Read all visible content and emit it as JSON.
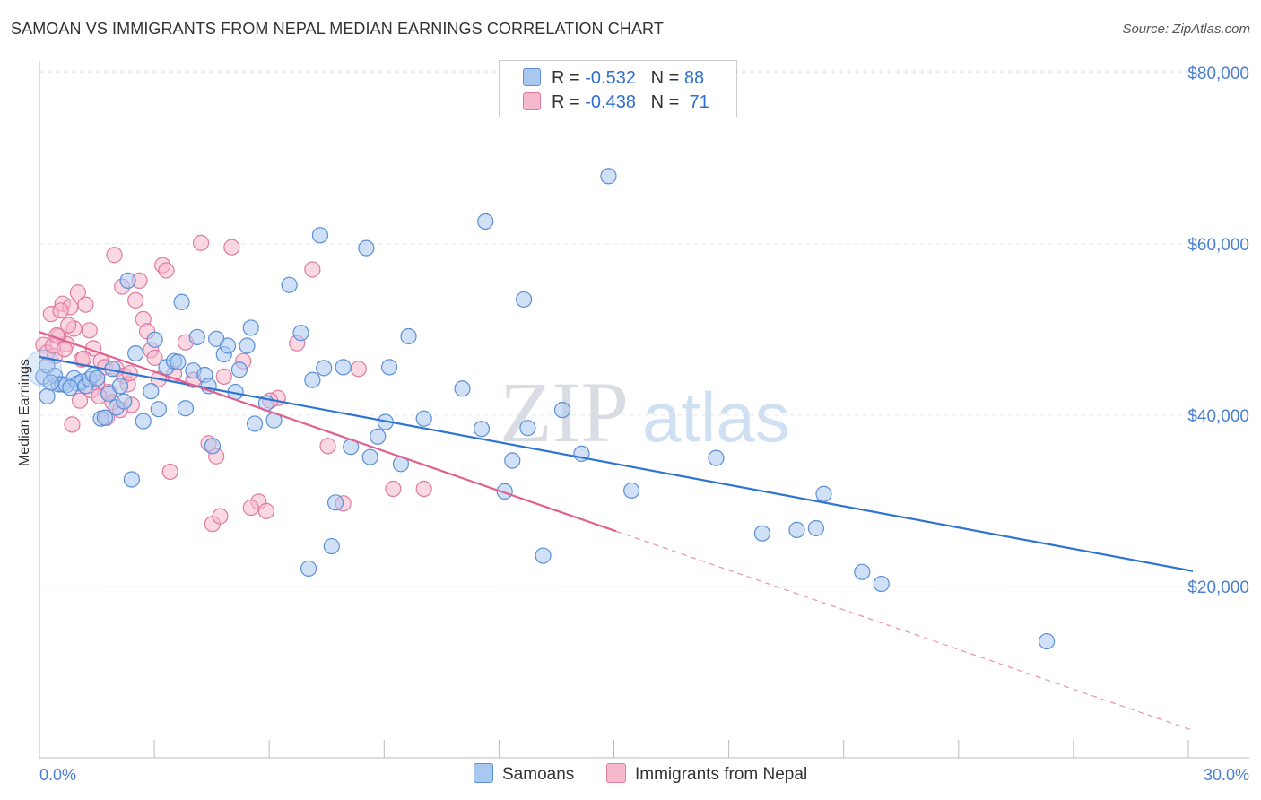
{
  "title": "SAMOAN VS IMMIGRANTS FROM NEPAL MEDIAN EARNINGS CORRELATION CHART",
  "source": "Source: ZipAtlas.com",
  "watermark": {
    "zip": "ZIP",
    "atlas": "atlas"
  },
  "legend": {
    "rows": [
      {
        "r_label": "R =",
        "r_value": "-0.532",
        "n_label": "N =",
        "n_value": "88",
        "color": "#a9c8f0"
      },
      {
        "r_label": "R =",
        "r_value": "-0.438",
        "n_label": "N =",
        "n_value": "71",
        "color": "#f5b8cc"
      }
    ]
  },
  "bottom_legend": [
    "Samoans",
    "Immigrants from Nepal"
  ],
  "colors": {
    "blue_fill": "#a9c8f0",
    "blue_stroke": "#5b8fd6",
    "blue_line": "#2f74d0",
    "pink_fill": "#f5b8cc",
    "pink_stroke": "#e07aa0",
    "pink_line": "#e0608e"
  },
  "chart_data": {
    "type": "scatter",
    "xlabel": "",
    "ylabel": "Median Earnings",
    "xlim": [
      0,
      30
    ],
    "ylim": [
      0,
      85000
    ],
    "x_tick_labels": [
      "0.0%",
      "30.0%"
    ],
    "y_ticks": [
      20000,
      40000,
      60000,
      80000
    ],
    "y_tick_labels": [
      "$20,000",
      "$40,000",
      "$60,000",
      "$80,000"
    ],
    "grid": true,
    "series": [
      {
        "name": "Samoans",
        "r": -0.532,
        "n": 88,
        "trend": {
          "x0": 0.0,
          "y0": 46800,
          "x1": 30.0,
          "y1": 21800,
          "dashed_from": null
        },
        "points": [
          [
            0.1,
            44500
          ],
          [
            0.2,
            45800
          ],
          [
            0.4,
            44600
          ],
          [
            0.5,
            43600
          ],
          [
            0.6,
            43600
          ],
          [
            0.7,
            43500
          ],
          [
            0.9,
            44300
          ],
          [
            1.0,
            43700
          ],
          [
            1.1,
            43900
          ],
          [
            1.2,
            43400
          ],
          [
            1.3,
            44200
          ],
          [
            1.4,
            44700
          ],
          [
            1.5,
            44300
          ],
          [
            1.6,
            39600
          ],
          [
            1.7,
            39700
          ],
          [
            1.8,
            42500
          ],
          [
            1.9,
            45400
          ],
          [
            2.0,
            40900
          ],
          [
            2.1,
            43400
          ],
          [
            2.2,
            41600
          ],
          [
            2.3,
            55700
          ],
          [
            2.5,
            47200
          ],
          [
            2.7,
            39300
          ],
          [
            2.9,
            42800
          ],
          [
            3.0,
            48800
          ],
          [
            3.1,
            40700
          ],
          [
            3.3,
            45600
          ],
          [
            3.5,
            46300
          ],
          [
            3.6,
            46200
          ],
          [
            3.7,
            53200
          ],
          [
            3.8,
            40800
          ],
          [
            4.0,
            45200
          ],
          [
            4.1,
            49100
          ],
          [
            4.3,
            44700
          ],
          [
            4.4,
            43400
          ],
          [
            4.5,
            36400
          ],
          [
            4.6,
            48900
          ],
          [
            4.8,
            47100
          ],
          [
            4.9,
            48100
          ],
          [
            5.1,
            42700
          ],
          [
            5.2,
            45300
          ],
          [
            5.4,
            48100
          ],
          [
            5.5,
            50200
          ],
          [
            5.6,
            39000
          ],
          [
            5.9,
            41400
          ],
          [
            6.1,
            39400
          ],
          [
            6.5,
            55200
          ],
          [
            6.8,
            49600
          ],
          [
            7.1,
            44100
          ],
          [
            7.3,
            61000
          ],
          [
            7.4,
            45500
          ],
          [
            7.7,
            29800
          ],
          [
            7.9,
            45600
          ],
          [
            8.1,
            36300
          ],
          [
            8.5,
            59500
          ],
          [
            8.6,
            35100
          ],
          [
            8.8,
            37500
          ],
          [
            9.0,
            39200
          ],
          [
            9.1,
            45600
          ],
          [
            9.4,
            34300
          ],
          [
            9.6,
            49200
          ],
          [
            10.0,
            39600
          ],
          [
            11.0,
            43100
          ],
          [
            11.5,
            38400
          ],
          [
            11.6,
            62600
          ],
          [
            12.1,
            31100
          ],
          [
            12.3,
            34700
          ],
          [
            12.6,
            53500
          ],
          [
            12.7,
            38500
          ],
          [
            13.1,
            23600
          ],
          [
            13.6,
            40600
          ],
          [
            14.1,
            35500
          ],
          [
            14.8,
            67900
          ],
          [
            15.4,
            31200
          ],
          [
            17.6,
            35000
          ],
          [
            18.8,
            26200
          ],
          [
            19.7,
            26600
          ],
          [
            20.2,
            26800
          ],
          [
            20.4,
            30800
          ],
          [
            21.4,
            21700
          ],
          [
            21.9,
            20300
          ],
          [
            26.2,
            13600
          ],
          [
            7.0,
            22100
          ],
          [
            7.6,
            24700
          ],
          [
            2.4,
            32500
          ],
          [
            0.2,
            42200
          ],
          [
            0.3,
            43800
          ],
          [
            0.8,
            43200
          ]
        ]
      },
      {
        "name": "Immigrants from Nepal",
        "r": -0.438,
        "n": 71,
        "trend": {
          "x0": 0.0,
          "y0": 49700,
          "x1": 30.0,
          "y1": 3200,
          "dashed_from": 15.0
        },
        "points": [
          [
            0.1,
            48200
          ],
          [
            0.2,
            47300
          ],
          [
            0.3,
            51800
          ],
          [
            0.4,
            46900
          ],
          [
            0.5,
            49200
          ],
          [
            0.6,
            53000
          ],
          [
            0.7,
            48300
          ],
          [
            0.8,
            52600
          ],
          [
            0.9,
            50100
          ],
          [
            1.0,
            54300
          ],
          [
            1.1,
            46500
          ],
          [
            1.2,
            52900
          ],
          [
            1.3,
            49900
          ],
          [
            1.4,
            47800
          ],
          [
            1.5,
            43800
          ],
          [
            1.6,
            46300
          ],
          [
            1.7,
            45600
          ],
          [
            1.8,
            42700
          ],
          [
            1.9,
            41500
          ],
          [
            2.0,
            45400
          ],
          [
            2.1,
            40600
          ],
          [
            2.2,
            44600
          ],
          [
            2.3,
            43600
          ],
          [
            2.4,
            41200
          ],
          [
            2.5,
            53400
          ],
          [
            2.6,
            55700
          ],
          [
            2.7,
            51200
          ],
          [
            2.8,
            49800
          ],
          [
            2.9,
            47600
          ],
          [
            3.0,
            46700
          ],
          [
            3.1,
            44200
          ],
          [
            3.2,
            57500
          ],
          [
            3.3,
            56900
          ],
          [
            3.5,
            44800
          ],
          [
            3.8,
            48500
          ],
          [
            4.0,
            44100
          ],
          [
            4.2,
            60100
          ],
          [
            4.4,
            36700
          ],
          [
            4.6,
            35200
          ],
          [
            4.8,
            44500
          ],
          [
            5.0,
            59600
          ],
          [
            5.3,
            46300
          ],
          [
            5.7,
            29900
          ],
          [
            5.9,
            28800
          ],
          [
            6.2,
            42000
          ],
          [
            6.7,
            48400
          ],
          [
            7.1,
            57000
          ],
          [
            7.5,
            36400
          ],
          [
            7.9,
            29700
          ],
          [
            8.3,
            45400
          ],
          [
            9.2,
            31400
          ],
          [
            10.0,
            31400
          ],
          [
            0.35,
            48100
          ],
          [
            0.45,
            49300
          ],
          [
            0.55,
            52200
          ],
          [
            0.65,
            47700
          ],
          [
            0.75,
            50500
          ],
          [
            0.85,
            38900
          ],
          [
            1.05,
            41700
          ],
          [
            1.15,
            46600
          ],
          [
            1.35,
            42900
          ],
          [
            1.55,
            42200
          ],
          [
            1.75,
            39700
          ],
          [
            1.95,
            58700
          ],
          [
            2.15,
            55000
          ],
          [
            2.35,
            44900
          ],
          [
            3.4,
            33400
          ],
          [
            4.5,
            27300
          ],
          [
            4.7,
            28200
          ],
          [
            5.5,
            29200
          ],
          [
            6.0,
            41700
          ]
        ]
      }
    ]
  }
}
